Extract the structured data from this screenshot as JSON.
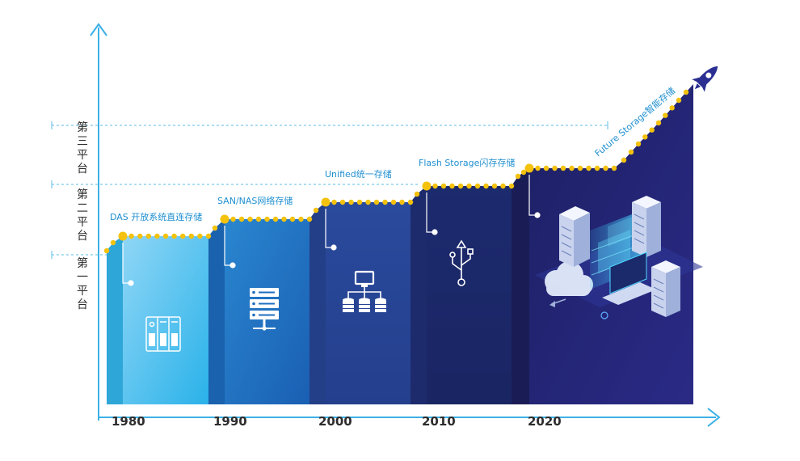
{
  "platforms": [
    {
      "label": "第三平台"
    },
    {
      "label": "第二平台"
    },
    {
      "label": "第一平台"
    }
  ],
  "eras": [
    {
      "label": "DAS 开放系统直连存储",
      "icon": "das-storage-icon"
    },
    {
      "label": "SAN/NAS网络存储",
      "icon": "server-rack-icon"
    },
    {
      "label": "Unified统一存储",
      "icon": "network-storage-icon"
    },
    {
      "label": "Flash Storage闪存存储",
      "icon": "usb-icon"
    },
    {
      "label": "Future Storage智能存储",
      "icon": "rocket-icon"
    }
  ],
  "years": [
    "1980",
    "1990",
    "2000",
    "2010",
    "2020"
  ],
  "colors": {
    "axis": "#3bb0e6",
    "dots": "#f4c20d",
    "dashed": "#5bbde8"
  }
}
